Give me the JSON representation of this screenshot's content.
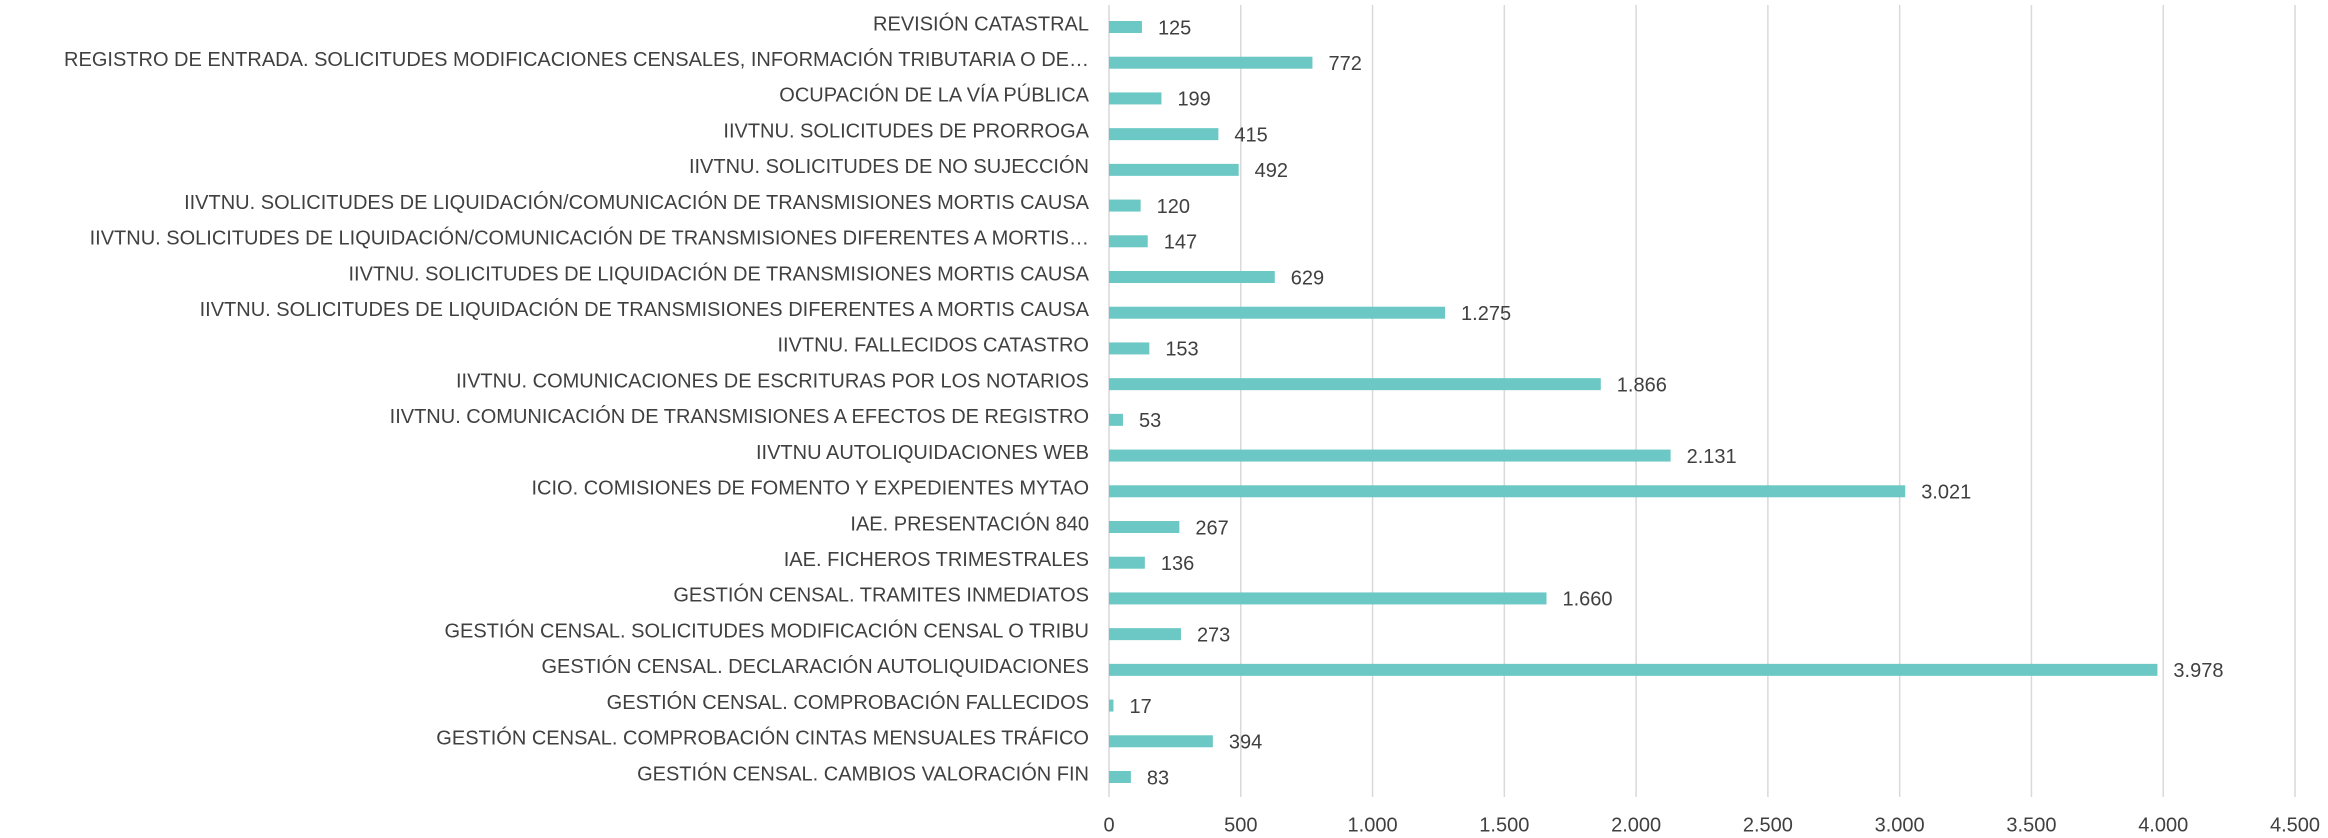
{
  "chart_data": {
    "type": "barh",
    "categories": [
      "REVISIÓN CATASTRAL",
      "REGISTRO DE ENTRADA. SOLICITUDES MODIFICACIONES CENSALES, INFORMACIÓN TRIBUTARIA O DE…",
      "OCUPACIÓN DE LA VÍA PÚBLICA",
      "IIVTNU. SOLICITUDES DE PRORROGA",
      "IIVTNU. SOLICITUDES DE NO SUJECCIÓN",
      "IIVTNU. SOLICITUDES DE LIQUIDACIÓN/COMUNICACIÓN DE TRANSMISIONES MORTIS CAUSA",
      "IIVTNU. SOLICITUDES DE LIQUIDACIÓN/COMUNICACIÓN DE TRANSMISIONES DIFERENTES A MORTIS…",
      "IIVTNU. SOLICITUDES DE LIQUIDACIÓN DE TRANSMISIONES MORTIS CAUSA",
      "IIVTNU. SOLICITUDES DE LIQUIDACIÓN DE TRANSMISIONES DIFERENTES A MORTIS CAUSA",
      "IIVTNU. FALLECIDOS CATASTRO",
      "IIVTNU. COMUNICACIONES DE ESCRITURAS POR LOS NOTARIOS",
      "IIVTNU. COMUNICACIÓN DE TRANSMISIONES A EFECTOS DE REGISTRO",
      "IIVTNU AUTOLIQUIDACIONES WEB",
      "ICIO. COMISIONES DE FOMENTO Y EXPEDIENTES MYTAO",
      "IAE. PRESENTACIÓN 840",
      "IAE. FICHEROS TRIMESTRALES",
      "GESTIÓN CENSAL. TRAMITES INMEDIATOS",
      "GESTIÓN CENSAL. SOLICITUDES MODIFICACIÓN CENSAL O TRIBU",
      "GESTIÓN CENSAL. DECLARACIÓN AUTOLIQUIDACIONES",
      "GESTIÓN CENSAL. COMPROBACIÓN FALLECIDOS",
      "GESTIÓN CENSAL. COMPROBACIÓN CINTAS MENSUALES TRÁFICO",
      "GESTIÓN CENSAL. CAMBIOS VALORACIÓN FIN"
    ],
    "values": [
      125,
      772,
      199,
      415,
      492,
      120,
      147,
      629,
      1275,
      153,
      1866,
      53,
      2131,
      3021,
      267,
      136,
      1660,
      273,
      3978,
      17,
      394,
      83
    ],
    "value_labels": [
      "125",
      "772",
      "199",
      "415",
      "492",
      "120",
      "147",
      "629",
      "1.275",
      "153",
      "1.866",
      "53",
      "2.131",
      "3.021",
      "267",
      "136",
      "1.660",
      "273",
      "3.978",
      "17",
      "394",
      "83"
    ],
    "color": "#6cc8c4",
    "xlim": [
      0,
      4500
    ],
    "xticks": [
      0,
      500,
      {
        "value": 1000,
        "label": "1.000"
      },
      {
        "value": 1500,
        "label": "1.500"
      },
      {
        "value": 2000,
        "label": "2.000"
      },
      {
        "value": 2500,
        "label": "2.500"
      },
      {
        "value": 3000,
        "label": "3.000"
      },
      {
        "value": 3500,
        "label": "3.500"
      },
      {
        "value": 4000,
        "label": "4.000"
      },
      {
        "value": 4500,
        "label": "4.500"
      }
    ],
    "grid": true
  }
}
